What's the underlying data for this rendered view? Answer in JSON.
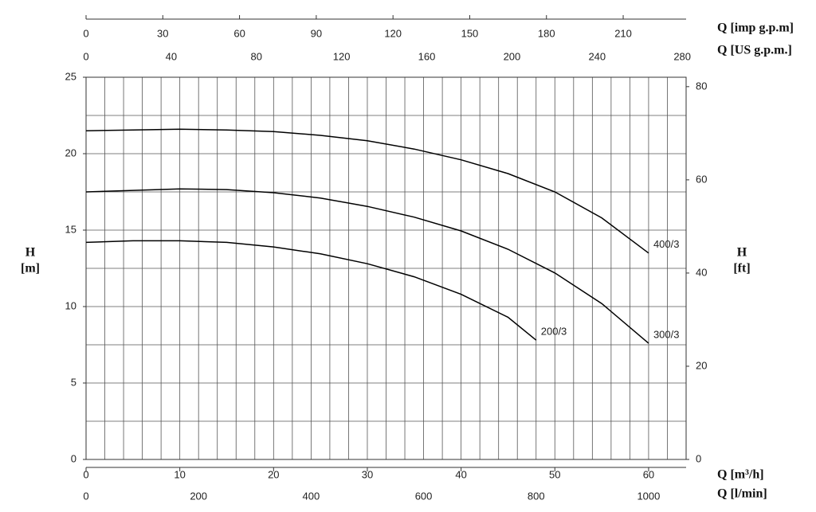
{
  "chart_data": {
    "type": "line",
    "ylabel": {
      "symbol": "H",
      "unit": "[m]"
    },
    "y2label": {
      "symbol": "H",
      "unit": "[ft]"
    },
    "ylim": [
      0,
      25
    ],
    "yticks": [
      0,
      5,
      10,
      15,
      20,
      25
    ],
    "ygrid": [
      2.5,
      5,
      7.5,
      10,
      12.5,
      15,
      17.5,
      20,
      22.5,
      25
    ],
    "y2lim": [
      0,
      82.02
    ],
    "y2ticks": [
      0,
      20,
      40,
      60,
      80
    ],
    "xlim": [
      0,
      64
    ],
    "xgrid": [
      2,
      4,
      6,
      8,
      10,
      12,
      14,
      16,
      18,
      20,
      22,
      24,
      26,
      28,
      30,
      32,
      34,
      36,
      38,
      40,
      42,
      44,
      46,
      48,
      50,
      52,
      54,
      56,
      58,
      60,
      62
    ],
    "x_axes": [
      {
        "label": "Q [m³/h]",
        "xlim": [
          0,
          64
        ],
        "xticks": [
          0,
          10,
          20,
          30,
          40,
          50,
          60
        ]
      },
      {
        "label": "Q [l/min]",
        "xlim": [
          0,
          1066.7
        ],
        "xticks": [
          0,
          200,
          400,
          600,
          800,
          1000
        ]
      },
      {
        "label": "Q [imp g.p.m]",
        "xlim": [
          0,
          234.6
        ],
        "xticks": [
          0,
          30,
          60,
          90,
          120,
          150,
          180,
          210
        ]
      },
      {
        "label": "Q [US g.p.m.]",
        "xlim": [
          0,
          281.8
        ],
        "xticks": [
          0,
          40,
          80,
          120,
          160,
          200,
          240,
          280
        ]
      }
    ],
    "series": [
      {
        "name": "400/3",
        "color": "#000000",
        "x": [
          0,
          5,
          10,
          15,
          20,
          25,
          30,
          35,
          40,
          45,
          50,
          55,
          60
        ],
        "values": [
          21.5,
          21.55,
          21.6,
          21.55,
          21.45,
          21.2,
          20.85,
          20.3,
          19.6,
          18.7,
          17.5,
          15.8,
          13.5
        ]
      },
      {
        "name": "300/3",
        "color": "#000000",
        "x": [
          0,
          5,
          10,
          15,
          20,
          25,
          30,
          35,
          40,
          45,
          50,
          55,
          60
        ],
        "values": [
          17.5,
          17.6,
          17.7,
          17.65,
          17.45,
          17.1,
          16.55,
          15.85,
          14.95,
          13.75,
          12.2,
          10.2,
          7.6
        ]
      },
      {
        "name": "200/3",
        "color": "#000000",
        "x": [
          0,
          5,
          10,
          15,
          20,
          25,
          30,
          35,
          40,
          45,
          48
        ],
        "values": [
          14.2,
          14.3,
          14.3,
          14.2,
          13.9,
          13.45,
          12.8,
          11.95,
          10.8,
          9.3,
          7.8
        ]
      }
    ]
  }
}
